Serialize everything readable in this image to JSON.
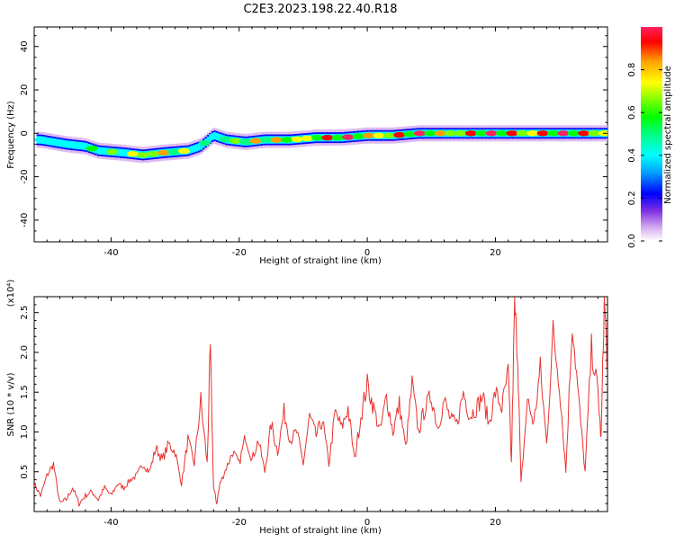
{
  "title": "C2E3.2023.198.22.40.R18",
  "colors": {
    "snr_line": "#e8322d",
    "spectrogram_background": "#ffffff",
    "colormap": [
      "#ffffff",
      "#d8b0f0",
      "#8030e0",
      "#0000ff",
      "#00a0ff",
      "#00ffff",
      "#00ff80",
      "#00ff00",
      "#80ff00",
      "#ffff00",
      "#ffa000",
      "#ff0000",
      "#ff2060"
    ]
  },
  "chart_data": [
    {
      "type": "heatmap",
      "xlabel": "Height of straight line (km)",
      "ylabel": "Frequency (Hz)",
      "xlim": [
        -52,
        37.5
      ],
      "ylim": [
        -50,
        49
      ],
      "xticks": [
        -40,
        -20,
        0,
        20
      ],
      "yticks": [
        -40,
        -20,
        0,
        20,
        40
      ],
      "colorbar": {
        "label": "Normalized spectral amplitude",
        "range": [
          0.0,
          1.0
        ],
        "ticks": [
          "0.0",
          "0.2",
          "0.4",
          "0.6",
          "0.8"
        ]
      },
      "ridge": {
        "description_points_x_km": [
          -51,
          -47,
          -44,
          -42,
          -38,
          -35,
          -32,
          -28,
          -26,
          -24,
          -22,
          -19,
          -16,
          -12,
          -8,
          -4,
          0,
          4,
          8,
          12,
          16,
          20,
          24,
          28,
          32,
          37
        ],
        "center_freq_hz": [
          -3,
          -5,
          -6,
          -8,
          -9,
          -10,
          -9,
          -8,
          -6,
          -1,
          -3,
          -4,
          -3,
          -3,
          -2,
          -2,
          -1,
          -1,
          0,
          0,
          0,
          0,
          0,
          0,
          0,
          0
        ],
        "peak_amplitude": [
          0.4,
          0.5,
          0.55,
          0.6,
          0.75,
          0.9,
          0.9,
          0.7,
          0.55,
          0.4,
          0.7,
          0.8,
          0.85,
          0.9,
          0.9,
          1.0,
          1.0,
          0.95,
          1.0,
          0.9,
          1.0,
          1.0,
          0.95,
          1.0,
          1.0,
          0.95
        ]
      }
    },
    {
      "type": "line",
      "xlabel": "Height of straight line (km)",
      "ylabel": "SNR (10 * v/v)",
      "y_multiplier": "(x10⁴)",
      "xlim": [
        -52,
        37.5
      ],
      "ylim": [
        0,
        2.7
      ],
      "xticks": [
        -40,
        -20,
        0,
        20
      ],
      "yticks": [
        "0.5",
        "1.0",
        "1.5",
        "2.0",
        "2.5"
      ],
      "series": [
        {
          "x": [
            -52,
            -51,
            -50,
            -49,
            -48,
            -47,
            -46,
            -45,
            -44,
            -43,
            -42,
            -41,
            -40,
            -39,
            -38,
            -37,
            -36,
            -35,
            -34,
            -33,
            -32,
            -31,
            -30,
            -29,
            -28,
            -27,
            -26,
            -25,
            -24.5,
            -24,
            -23.5,
            -23,
            -22,
            -21,
            -20,
            -19,
            -18,
            -17,
            -16,
            -15,
            -14,
            -13,
            -12,
            -11,
            -10,
            -9,
            -8,
            -7,
            -6,
            -5,
            -4,
            -3,
            -2,
            -1,
            0,
            1,
            2,
            3,
            4,
            5,
            6,
            7,
            8,
            9,
            10,
            11,
            12,
            13,
            14,
            15,
            16,
            17,
            18,
            19,
            20,
            21,
            22,
            22.5,
            23,
            23.5,
            24,
            25,
            26,
            27,
            28,
            29,
            30,
            31,
            32,
            33,
            34,
            35,
            36,
            36.5,
            37,
            37.5
          ],
          "y": [
            0.35,
            0.2,
            0.45,
            0.6,
            0.1,
            0.15,
            0.3,
            0.1,
            0.2,
            0.25,
            0.15,
            0.3,
            0.2,
            0.35,
            0.3,
            0.4,
            0.45,
            0.6,
            0.5,
            0.8,
            0.65,
            0.85,
            0.75,
            0.35,
            0.9,
            0.6,
            1.4,
            0.6,
            2.05,
            0.3,
            0.1,
            0.35,
            0.55,
            0.75,
            0.6,
            0.95,
            0.65,
            0.9,
            0.5,
            1.1,
            0.75,
            1.25,
            0.9,
            1.0,
            0.6,
            1.2,
            0.95,
            1.15,
            0.6,
            1.25,
            1.05,
            1.3,
            0.65,
            1.2,
            1.6,
            1.3,
            1.0,
            1.45,
            1.0,
            1.35,
            0.8,
            1.6,
            1.0,
            1.3,
            1.45,
            1.05,
            1.4,
            1.15,
            1.1,
            1.5,
            1.2,
            1.3,
            1.45,
            1.1,
            1.5,
            1.3,
            1.75,
            0.6,
            2.6,
            1.9,
            0.35,
            1.4,
            1.1,
            1.8,
            0.85,
            2.25,
            1.6,
            0.5,
            2.4,
            1.4,
            0.5,
            2.05,
            1.5,
            0.9,
            2.7,
            1.8
          ]
        }
      ]
    }
  ]
}
